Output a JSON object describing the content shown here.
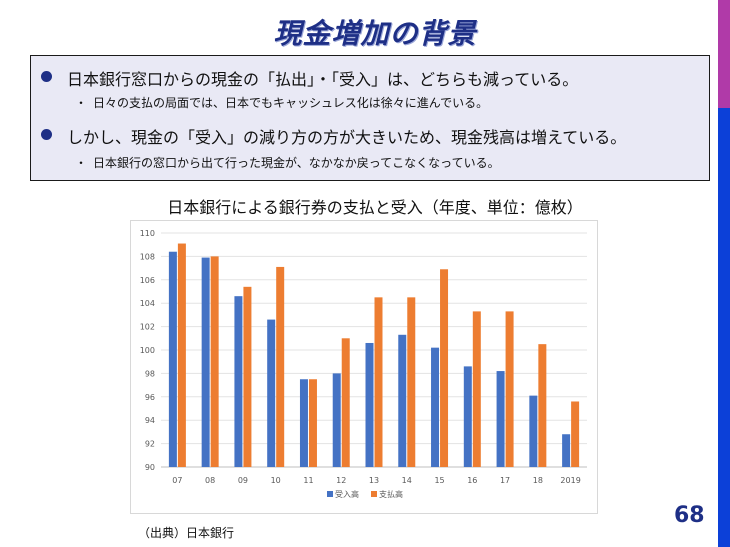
{
  "slide": {
    "title": "現金増加の背景",
    "page_number": "68",
    "source": "（出典）日本銀行",
    "bullets": [
      {
        "text": "日本銀行窓口からの現金の「払出」・「受入」は、どちらも減っている。",
        "sub": "日々の支払の局面では、日本でもキャッシュレス化は徐々に進んでいる。"
      },
      {
        "text": "しかし、現金の「受入」の減り方の方が大きいため、現金残高は増えている。",
        "sub": "日本銀行の窓口から出て行った現金が、なかなか戻ってこなくなっている。"
      }
    ],
    "sub_marker": "・",
    "colors": {
      "accent": "#1e2f86",
      "bar_purple": "#b03aa8",
      "bar_blue": "#0c40d8",
      "box_bg": "#e9e9f5"
    }
  },
  "chart_data": {
    "type": "bar",
    "title": "日本銀行による銀行券の支払と受入（年度、単位：億枚）",
    "categories": [
      "07",
      "08",
      "09",
      "10",
      "11",
      "12",
      "13",
      "14",
      "15",
      "16",
      "17",
      "18",
      "2019"
    ],
    "series": [
      {
        "name": "受入高",
        "color": "#4472c4",
        "values": [
          108.4,
          107.9,
          104.6,
          102.6,
          97.5,
          98.0,
          100.6,
          101.3,
          100.2,
          98.6,
          98.2,
          96.1,
          92.8
        ]
      },
      {
        "name": "支払高",
        "color": "#ed7d31",
        "values": [
          109.1,
          108.0,
          105.4,
          107.1,
          97.5,
          101.0,
          104.5,
          104.5,
          106.9,
          103.3,
          103.3,
          100.5,
          95.6
        ]
      }
    ],
    "ylim": [
      90,
      110
    ],
    "yticks": [
      90,
      92,
      94,
      96,
      98,
      100,
      102,
      104,
      106,
      108,
      110
    ],
    "grid": true,
    "legend": "bottom"
  }
}
